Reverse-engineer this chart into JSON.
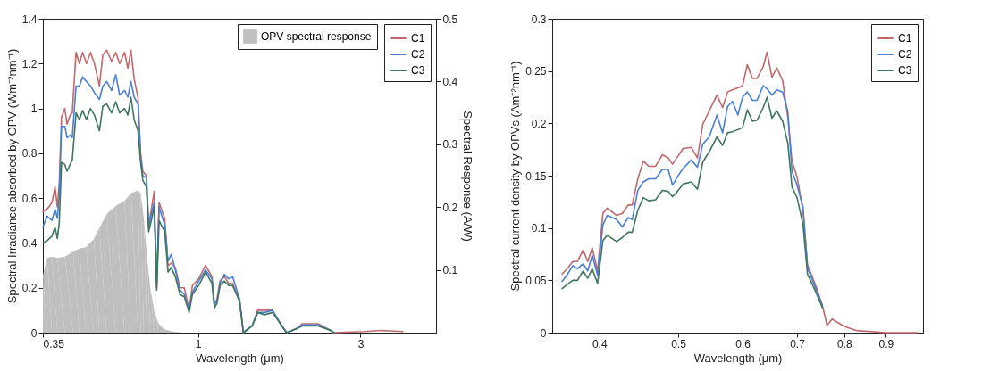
{
  "chart_data": [
    {
      "type": "line",
      "log": "x",
      "xlabel": "Wavelength (μm)",
      "ylabel": "Spectral Irradiance absorbed by OPV (Wm⁻²nm⁻¹)",
      "y2label": "Spectral Response (A/W)",
      "xlim": [
        0.35,
        5
      ],
      "xticks": [
        0.35,
        1,
        3
      ],
      "ylim": [
        0,
        1.4
      ],
      "yticks": [
        0,
        0.2,
        0.4,
        0.6,
        0.8,
        1,
        1.2,
        1.4
      ],
      "y2lim": [
        0,
        0.5
      ],
      "y2ticks": [
        0.1,
        0.2,
        0.3,
        0.4,
        0.5
      ],
      "legend": "top right",
      "x": [
        0.35,
        0.36,
        0.372,
        0.38,
        0.386,
        0.391,
        0.397,
        0.406,
        0.412,
        0.421,
        0.427,
        0.438,
        0.448,
        0.458,
        0.47,
        0.483,
        0.496,
        0.513,
        0.525,
        0.539,
        0.557,
        0.573,
        0.588,
        0.608,
        0.622,
        0.635,
        0.649,
        0.666,
        0.678,
        0.688,
        0.705,
        0.716,
        0.729,
        0.743,
        0.756,
        0.768,
        0.798,
        0.816,
        0.834,
        0.857,
        0.885,
        0.911,
        0.941,
        0.962,
        1.004,
        1.052,
        1.098,
        1.117,
        1.136,
        1.16,
        1.195,
        1.229,
        1.263,
        1.324,
        1.358,
        1.441,
        1.497,
        1.569,
        1.654,
        1.745,
        1.82,
        1.96,
        2.024,
        2.251,
        2.451,
        2.503,
        3.096,
        3.443,
        3.996
      ],
      "series": [
        {
          "name": "OPV spectral response",
          "type": "area",
          "axis": "y2",
          "color": "#bfbfbf",
          "x": [
            0.35,
            0.36,
            0.372,
            0.386,
            0.406,
            0.429,
            0.448,
            0.468,
            0.494,
            0.513,
            0.539,
            0.573,
            0.608,
            0.635,
            0.666,
            0.678,
            0.693,
            0.708,
            0.724,
            0.743,
            0.765,
            0.798,
            0.862,
            0.9
          ],
          "values": [
            0.091,
            0.119,
            0.121,
            0.119,
            0.121,
            0.129,
            0.134,
            0.136,
            0.149,
            0.167,
            0.189,
            0.202,
            0.21,
            0.222,
            0.227,
            0.222,
            0.182,
            0.121,
            0.071,
            0.035,
            0.015,
            0.005,
            0.001,
            0
          ]
        },
        {
          "name": "C1",
          "color": "#c0696b",
          "values": [
            0.54,
            0.55,
            0.58,
            0.65,
            0.56,
            0.67,
            0.96,
            1.0,
            0.93,
            0.97,
            0.98,
            1.25,
            1.2,
            1.25,
            1.2,
            1.25,
            1.2,
            1.1,
            1.24,
            1.26,
            1.21,
            1.25,
            1.2,
            1.25,
            1.18,
            1.26,
            1.13,
            1.05,
            0.8,
            0.72,
            0.7,
            0.48,
            0.55,
            0.63,
            0.2,
            0.58,
            0.51,
            0.3,
            0.31,
            0.29,
            0.2,
            0.2,
            0.1,
            0.21,
            0.24,
            0.3,
            0.25,
            0.12,
            0.15,
            0.23,
            0.25,
            0.22,
            0.22,
            0.14,
            0,
            0.03,
            0.1,
            0.1,
            0.1,
            0.04,
            0,
            0.02,
            0.04,
            0.04,
            0.01,
            0,
            0.005,
            0.01,
            0.005
          ]
        },
        {
          "name": "C2",
          "color": "#4a7fd4",
          "values": [
            0.47,
            0.52,
            0.5,
            0.55,
            0.51,
            0.61,
            0.92,
            0.92,
            0.87,
            0.88,
            0.87,
            1.1,
            1.1,
            1.14,
            1.12,
            1.1,
            1.07,
            1.04,
            1.1,
            1.12,
            1.08,
            1.15,
            1.06,
            1.08,
            1.05,
            1.12,
            1.05,
            1.02,
            0.78,
            0.7,
            0.69,
            0.47,
            0.53,
            0.58,
            0.22,
            0.56,
            0.48,
            0.32,
            0.35,
            0.28,
            0.19,
            0.17,
            0.1,
            0.18,
            0.23,
            0.28,
            0.24,
            0.13,
            0.14,
            0.22,
            0.26,
            0.24,
            0.25,
            0.15,
            0,
            0.03,
            0.09,
            0.09,
            0.1,
            0.04,
            0,
            0.02,
            0.035,
            0.035,
            0.01,
            0,
            null,
            null,
            null
          ]
        },
        {
          "name": "C3",
          "color": "#3e7660",
          "values": [
            0.4,
            0.41,
            0.43,
            0.47,
            0.42,
            0.49,
            0.76,
            0.75,
            0.72,
            0.75,
            0.77,
            0.98,
            0.95,
            0.99,
            0.95,
            1.0,
            0.97,
            0.9,
            1.01,
            1.02,
            0.98,
            1.03,
            0.98,
            1.0,
            0.97,
            1.05,
            0.95,
            0.9,
            0.76,
            0.68,
            0.65,
            0.45,
            0.5,
            0.56,
            0.19,
            0.5,
            0.45,
            0.27,
            0.29,
            0.25,
            0.17,
            0.16,
            0.09,
            0.17,
            0.21,
            0.27,
            0.22,
            0.11,
            0.13,
            0.21,
            0.23,
            0.21,
            0.21,
            0.14,
            0,
            0.03,
            0.09,
            0.08,
            0.09,
            0.04,
            0,
            0.02,
            0.03,
            0.03,
            0.01,
            0,
            null,
            null,
            null
          ]
        }
      ]
    },
    {
      "type": "line",
      "log": "x",
      "xlabel": "Wavelength (μm)",
      "ylabel": "Spectral current density by OPVs (Am⁻²nm⁻¹)",
      "xlim": [
        0.35,
        1
      ],
      "xticks": [
        0.4,
        0.5,
        0.6,
        0.7,
        0.8,
        0.9
      ],
      "ylim": [
        0,
        0.3
      ],
      "yticks": [
        0,
        0.05,
        0.1,
        0.15,
        0.2,
        0.25,
        0.3
      ],
      "legend": "top right",
      "x": [
        0.36,
        0.365,
        0.371,
        0.376,
        0.382,
        0.387,
        0.392,
        0.398,
        0.404,
        0.409,
        0.42,
        0.427,
        0.434,
        0.439,
        0.446,
        0.453,
        0.46,
        0.469,
        0.478,
        0.486,
        0.492,
        0.499,
        0.507,
        0.519,
        0.528,
        0.536,
        0.546,
        0.558,
        0.567,
        0.575,
        0.583,
        0.592,
        0.6,
        0.608,
        0.617,
        0.625,
        0.636,
        0.643,
        0.652,
        0.661,
        0.672,
        0.682,
        0.69,
        0.7,
        0.712,
        0.721,
        0.738,
        0.752,
        0.762,
        0.773,
        0.8,
        0.829,
        0.9,
        0.985
      ],
      "series": [
        {
          "name": "C1",
          "color": "#c0696b",
          "values": [
            0.056,
            0.061,
            0.068,
            0.068,
            0.079,
            0.068,
            0.081,
            0.059,
            0.114,
            0.119,
            0.112,
            0.114,
            0.122,
            0.122,
            0.147,
            0.164,
            0.159,
            0.159,
            0.17,
            0.167,
            0.161,
            0.168,
            0.176,
            0.177,
            0.167,
            0.199,
            0.212,
            0.227,
            0.215,
            0.23,
            0.232,
            0.234,
            0.236,
            0.256,
            0.243,
            0.243,
            0.254,
            0.268,
            0.244,
            0.253,
            0.241,
            0.206,
            0.164,
            0.149,
            0.116,
            0.065,
            0.045,
            0.026,
            0.007,
            0.013,
            0.006,
            0.002,
            0,
            0
          ]
        },
        {
          "name": "C2",
          "color": "#4a7fd4",
          "values": [
            0.049,
            0.055,
            0.064,
            0.061,
            0.066,
            0.059,
            0.074,
            0.055,
            0.103,
            0.112,
            0.108,
            0.101,
            0.11,
            0.108,
            0.136,
            0.144,
            0.147,
            0.147,
            0.156,
            0.156,
            0.141,
            0.149,
            0.157,
            0.165,
            0.158,
            0.18,
            0.187,
            0.208,
            0.191,
            0.216,
            0.221,
            0.208,
            0.225,
            0.23,
            0.222,
            0.222,
            0.236,
            0.233,
            0.227,
            0.232,
            0.23,
            0.211,
            0.154,
            0.141,
            0.12,
            0.062,
            0.042,
            0.026,
            null,
            null,
            null,
            null,
            null,
            null
          ]
        },
        {
          "name": "C3",
          "color": "#3e7660",
          "values": [
            0.042,
            0.046,
            0.05,
            0.05,
            0.059,
            0.052,
            0.061,
            0.047,
            0.088,
            0.093,
            0.087,
            0.091,
            0.096,
            0.096,
            0.117,
            0.129,
            0.126,
            0.127,
            0.136,
            0.135,
            0.13,
            0.135,
            0.142,
            0.144,
            0.137,
            0.163,
            0.173,
            0.187,
            0.179,
            0.191,
            0.192,
            0.194,
            0.196,
            0.213,
            0.202,
            0.203,
            0.215,
            0.225,
            0.205,
            0.212,
            0.202,
            0.181,
            0.139,
            0.129,
            0.103,
            0.056,
            0.039,
            0.024,
            null,
            null,
            null,
            null,
            null,
            null
          ]
        }
      ]
    }
  ]
}
